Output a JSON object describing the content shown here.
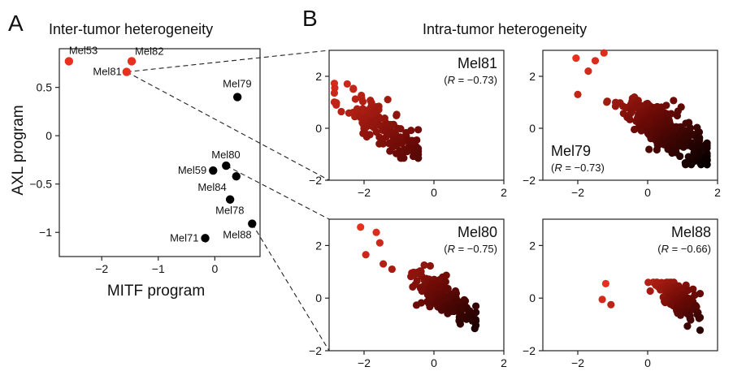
{
  "panel_a": {
    "letter": "A",
    "title": "Inter-tumor heterogeneity",
    "xlabel": "MITF program",
    "ylabel": "AXL program"
  },
  "panel_b": {
    "letter": "B",
    "title": "Intra-tumor heterogeneity"
  },
  "colors": {
    "red": "#e8301f",
    "dark_red": "#6b0a06",
    "black": "#000000",
    "axis": "#222222",
    "dash": "#222222"
  },
  "chart_data": [
    {
      "id": "inter",
      "type": "scatter",
      "title": "Inter-tumor heterogeneity",
      "xlabel": "MITF program",
      "ylabel": "AXL program",
      "xlim": [
        -2.75,
        0.8
      ],
      "ylim": [
        -1.25,
        0.9
      ],
      "xticks": [
        -2,
        -1,
        0
      ],
      "xtick_labels": [
        "−2",
        "−1",
        "0"
      ],
      "yticks": [
        0.5,
        0,
        -0.5,
        -1
      ],
      "ytick_labels": [
        "0.5",
        "0",
        "−0.5",
        "−1"
      ],
      "points": [
        {
          "label": "Mel53",
          "x": -2.58,
          "y": 0.77,
          "group": "red"
        },
        {
          "label": "Mel82",
          "x": -1.47,
          "y": 0.77,
          "group": "red"
        },
        {
          "label": "Mel81",
          "x": -1.56,
          "y": 0.66,
          "group": "red"
        },
        {
          "label": "Mel79",
          "x": 0.4,
          "y": 0.4,
          "group": "black"
        },
        {
          "label": "Mel80",
          "x": 0.2,
          "y": -0.31,
          "group": "black"
        },
        {
          "label": "Mel59",
          "x": -0.03,
          "y": -0.36,
          "group": "black"
        },
        {
          "label": "Mel84",
          "x": 0.38,
          "y": -0.42,
          "group": "black"
        },
        {
          "label": "Mel78",
          "x": 0.27,
          "y": -0.66,
          "group": "black"
        },
        {
          "label": "Mel88",
          "x": 0.66,
          "y": -0.91,
          "group": "black"
        },
        {
          "label": "Mel71",
          "x": -0.17,
          "y": -1.06,
          "group": "black"
        }
      ]
    },
    {
      "id": "mel81",
      "type": "scatter",
      "name": "Mel81",
      "annotation": "(R = −0.73)",
      "r_prefix": "(",
      "r_letter": "R",
      "r_value": " = −0.73)",
      "xlim": [
        -3,
        2
      ],
      "ylim": [
        -2,
        3
      ],
      "xticks": [
        -2,
        0,
        2
      ],
      "xtick_labels": [
        "−2",
        "0",
        "2"
      ],
      "yticks": [
        2,
        0,
        -2
      ],
      "ytick_labels": [
        "2",
        "0",
        "−2"
      ],
      "cloud": {
        "n": 150,
        "x_center": -1.45,
        "x_spread": 0.6,
        "slope": -0.95,
        "noise": 0.45,
        "x_min": -2.85,
        "x_max": -0.45,
        "y_min": -1.15,
        "y_max": 2.55
      }
    },
    {
      "id": "mel79",
      "type": "scatter",
      "name": "Mel79",
      "annotation": "(R = −0.73)",
      "r_prefix": "(",
      "r_letter": "R",
      "r_value": " = −0.73)",
      "xlim": [
        -3,
        2
      ],
      "ylim": [
        -2,
        3
      ],
      "xticks": [
        -2,
        0,
        2
      ],
      "xtick_labels": [
        "−2",
        "0",
        "2"
      ],
      "yticks": [
        2,
        0,
        -2
      ],
      "ytick_labels": [
        "2",
        "0",
        "−2"
      ],
      "cloud": {
        "n": 340,
        "x_center": 0.45,
        "x_spread": 0.6,
        "slope": -0.8,
        "noise": 0.38,
        "x_min": -2.05,
        "x_max": 1.7,
        "y_min": -1.4,
        "y_max": 2.9
      }
    },
    {
      "id": "mel80",
      "type": "scatter",
      "name": "Mel80",
      "annotation": "(R = −0.75)",
      "r_prefix": "(",
      "r_letter": "R",
      "r_value": " = −0.75)",
      "xlim": [
        -3,
        2
      ],
      "ylim": [
        -2,
        3
      ],
      "xticks": [
        -2,
        0,
        2
      ],
      "xtick_labels": [
        "−2",
        "0",
        "2"
      ],
      "yticks": [
        2,
        0,
        -2
      ],
      "ytick_labels": [
        "2",
        "0",
        "−2"
      ],
      "cloud": {
        "n": 170,
        "x_center": 0.3,
        "x_spread": 0.5,
        "slope": -0.85,
        "noise": 0.3,
        "x_min": -2.1,
        "x_max": 1.2,
        "y_min": -1.2,
        "y_max": 2.7
      }
    },
    {
      "id": "mel88",
      "type": "scatter",
      "name": "Mel88",
      "annotation": "(R = −0.66)",
      "r_prefix": "(",
      "r_letter": "R",
      "r_value": " = −0.66)",
      "xlim": [
        -3,
        2
      ],
      "ylim": [
        -2,
        3
      ],
      "xticks": [
        -2,
        0
      ],
      "xtick_labels": [
        "−2",
        "0"
      ],
      "yticks": [
        2,
        0,
        -2
      ],
      "ytick_labels": [
        "2",
        "0",
        "−2"
      ],
      "cloud": {
        "n": 150,
        "x_center": 0.85,
        "x_spread": 0.3,
        "slope": -0.9,
        "noise": 0.3,
        "x_min": -1.3,
        "x_max": 1.5,
        "y_min": -1.8,
        "y_max": 0.6
      }
    }
  ]
}
